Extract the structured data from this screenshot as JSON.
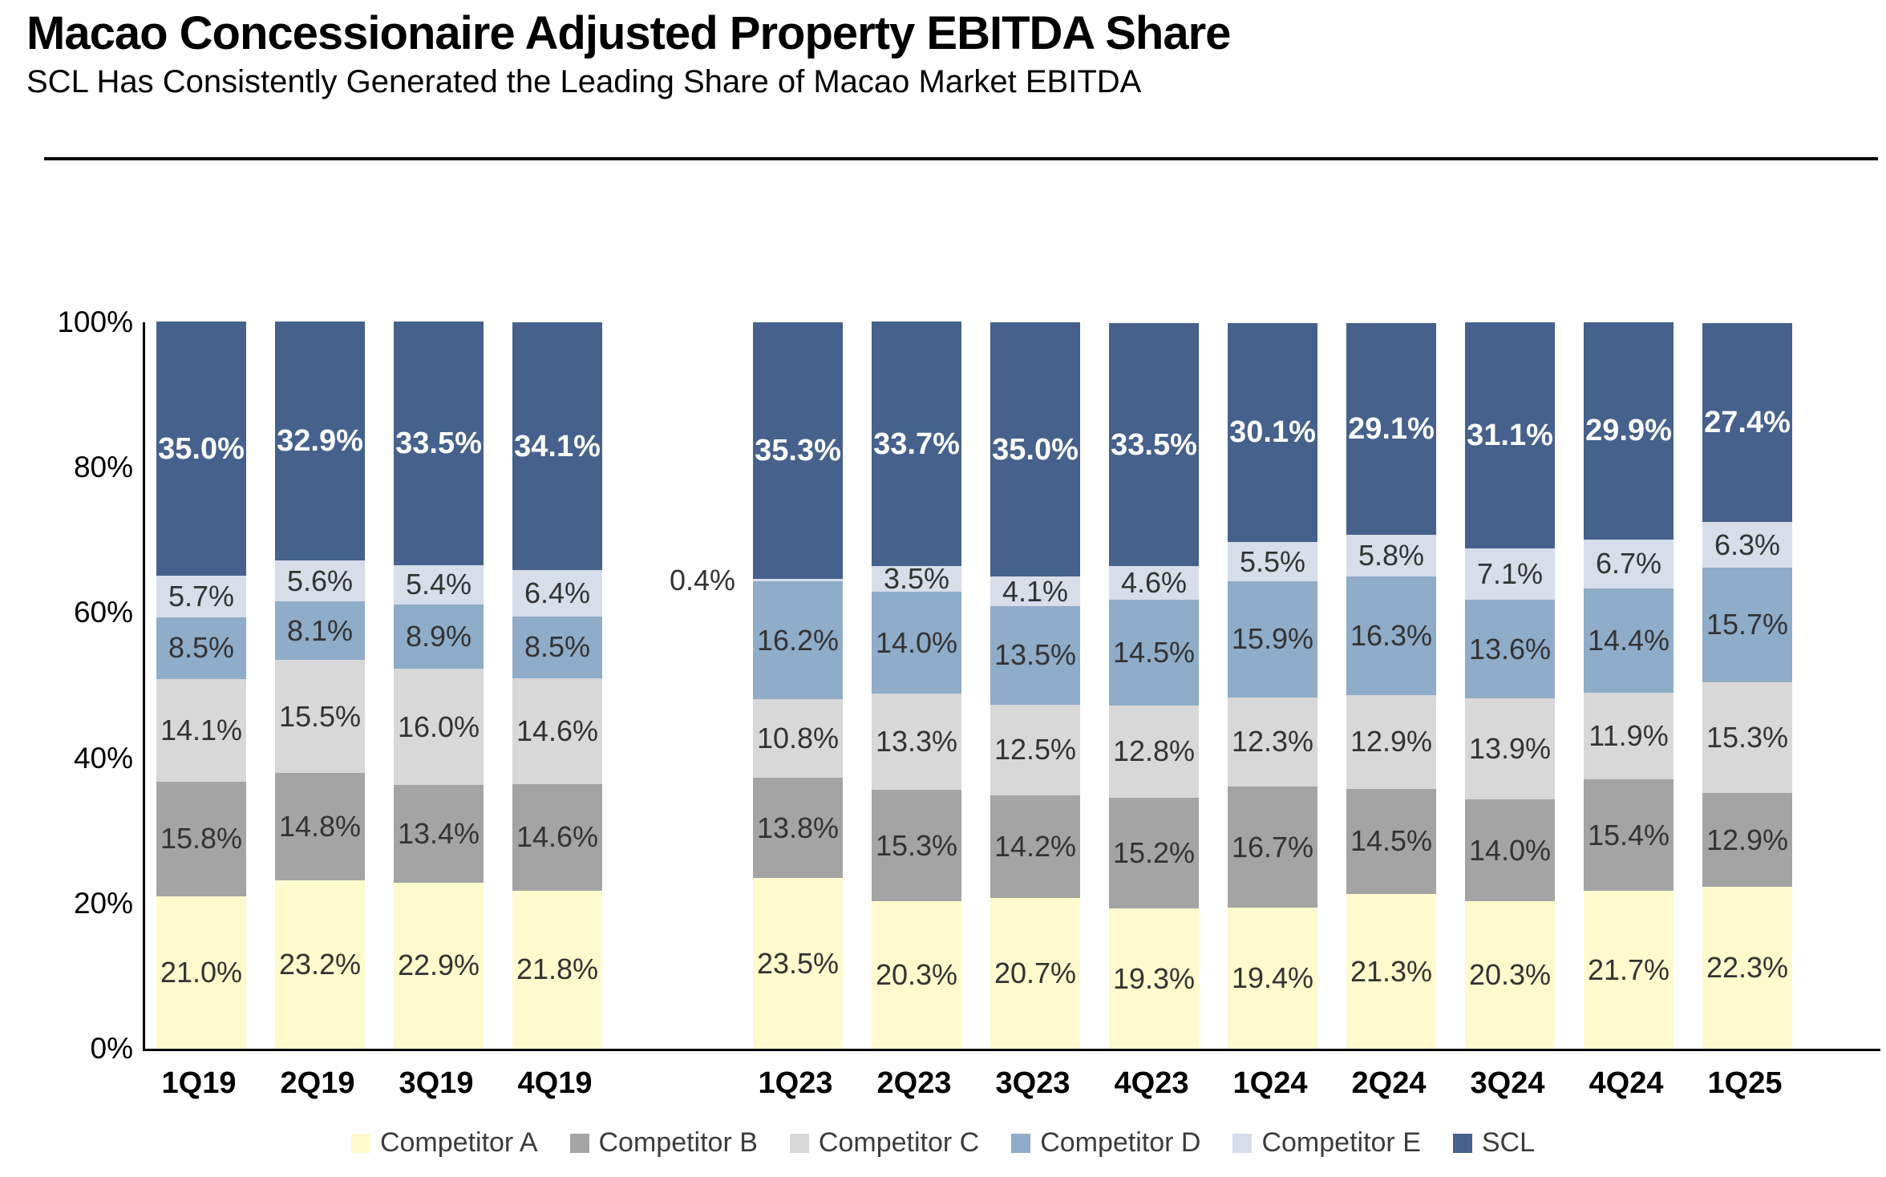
{
  "page": {
    "title": "Macao Concessionaire Adjusted Property EBITDA Share",
    "subtitle": "SCL Has Consistently Generated the Leading Share of Macao Market EBITDA"
  },
  "chart_data": {
    "type": "bar",
    "stacked": true,
    "unit": "%",
    "title": "Macao Concessionaire Adjusted Property EBITDA Share",
    "subtitle": "SCL Has Consistently Generated the Leading Share of Macao Market EBITDA",
    "categories": [
      "1Q19",
      "2Q19",
      "3Q19",
      "4Q19",
      "1Q23",
      "2Q23",
      "3Q23",
      "4Q23",
      "1Q24",
      "2Q24",
      "3Q24",
      "4Q24",
      "1Q25"
    ],
    "group_gap_after": "4Q19",
    "series": [
      {
        "name": "Competitor A",
        "color": "#FEFACD",
        "values": [
          21.0,
          23.2,
          22.9,
          21.8,
          23.5,
          20.3,
          20.7,
          19.3,
          19.4,
          21.3,
          20.3,
          21.7,
          22.3
        ]
      },
      {
        "name": "Competitor B",
        "color": "#A4A4A4",
        "values": [
          15.8,
          14.8,
          13.4,
          14.6,
          13.8,
          15.3,
          14.2,
          15.2,
          16.7,
          14.5,
          14.0,
          15.4,
          12.9
        ]
      },
      {
        "name": "Competitor C",
        "color": "#D8D8D8",
        "values": [
          14.1,
          15.5,
          16.0,
          14.6,
          10.8,
          13.3,
          12.5,
          12.8,
          12.3,
          12.9,
          13.9,
          11.9,
          15.3
        ]
      },
      {
        "name": "Competitor D",
        "color": "#8FACC8",
        "values": [
          8.5,
          8.1,
          8.9,
          8.5,
          16.2,
          14.0,
          13.5,
          14.5,
          15.9,
          16.3,
          13.6,
          14.4,
          15.7
        ]
      },
      {
        "name": "Competitor E",
        "color": "#D7DDE9",
        "values": [
          5.7,
          5.6,
          5.4,
          6.4,
          0.4,
          3.5,
          4.1,
          4.6,
          5.5,
          5.8,
          7.1,
          6.7,
          6.3
        ]
      },
      {
        "name": "SCL",
        "color": "#45618C",
        "values": [
          35.0,
          32.9,
          33.5,
          34.1,
          35.3,
          33.7,
          35.0,
          33.5,
          30.1,
          29.1,
          31.1,
          29.9,
          27.4
        ],
        "label_style": "bold-white"
      }
    ],
    "y_axis": {
      "min": 0,
      "max": 100,
      "ticks": [
        "0%",
        "20%",
        "40%",
        "60%",
        "80%",
        "100%"
      ],
      "tick_values": [
        0,
        20,
        40,
        60,
        80,
        100
      ]
    },
    "legend_position": "bottom",
    "grid": false,
    "annotations": [
      {
        "category": "1Q23",
        "series": "Competitor E",
        "value_label": "0.4%",
        "placement": "outside-left"
      }
    ]
  }
}
